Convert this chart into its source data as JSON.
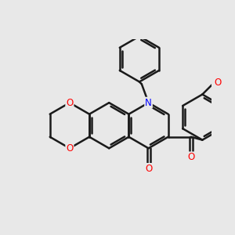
{
  "bg_color": "#e8e8e8",
  "bond_color": "#1a1a1a",
  "N_color": "#0000ff",
  "O_color": "#ff0000",
  "bond_width": 1.8,
  "figsize": [
    3.0,
    3.0
  ],
  "dpi": 100,
  "xlim": [
    -3.5,
    4.5
  ],
  "ylim": [
    -3.2,
    3.8
  ]
}
